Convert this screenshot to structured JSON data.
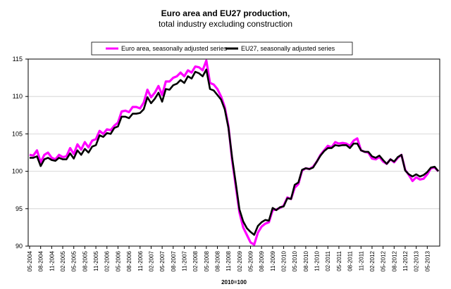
{
  "chart_data": {
    "type": "line",
    "title": "Euro area and EU27 production,",
    "subtitle": "total industry excluding construction",
    "xlabel": "2010=100",
    "ylabel": "",
    "ylim": [
      90,
      115
    ],
    "yticks": [
      90,
      95,
      100,
      105,
      110,
      115
    ],
    "grid": "horizontal",
    "legend_position": "top",
    "x_start": "05-2004",
    "x_end": "05-2013",
    "x_tick_labels": [
      "05-2004",
      "08-2004",
      "11-2004",
      "02-2005",
      "05-2005",
      "08-2005",
      "11-2005",
      "02-2006",
      "05-2006",
      "08-2006",
      "11-2006",
      "02-2007",
      "05-2007",
      "08-2007",
      "11-2007",
      "02-2008",
      "05-2008",
      "08-2008",
      "11-2008",
      "02-2009",
      "05-2009",
      "08-2009",
      "11-2009",
      "02-2010",
      "05-2010",
      "08-2010",
      "11-2010",
      "02-2011",
      "05-2011",
      "08-2011",
      "11-2011",
      "02-2012",
      "05-2012",
      "08-2012",
      "11-2012",
      "02-2013",
      "05-2013"
    ],
    "series": [
      {
        "name": "Euro area, seasonally adjusted series",
        "color": "#ff00ff",
        "values": [
          102.2,
          102.1,
          102.8,
          101.2,
          102.2,
          102.5,
          101.8,
          101.6,
          102.2,
          101.9,
          102.0,
          103.1,
          102.3,
          103.6,
          102.9,
          103.9,
          103.2,
          104.1,
          104.3,
          105.4,
          105.0,
          105.6,
          105.5,
          106.1,
          106.5,
          108.0,
          108.1,
          107.9,
          108.6,
          108.6,
          108.4,
          109.2,
          110.9,
          109.9,
          110.5,
          111.4,
          110.2,
          112.0,
          112.0,
          112.5,
          112.7,
          113.2,
          112.7,
          113.5,
          113.2,
          114.0,
          113.9,
          113.5,
          114.8,
          111.8,
          111.6,
          111.0,
          110.0,
          108.6,
          106.0,
          101.5,
          98.0,
          94.5,
          92.5,
          91.5,
          90.5,
          90.2,
          91.8,
          92.6,
          93.0,
          93.2,
          94.8,
          94.9,
          95.1,
          95.4,
          96.5,
          96.3,
          97.8,
          98.3,
          100.1,
          100.4,
          100.3,
          100.6,
          101.3,
          102.2,
          102.8,
          103.4,
          103.2,
          103.9,
          103.7,
          103.8,
          103.7,
          103.4,
          104.1,
          104.4,
          102.8,
          102.6,
          102.5,
          101.7,
          101.6,
          101.9,
          101.3,
          101.0,
          101.6,
          101.2,
          101.8,
          102.2,
          100.2,
          99.5,
          98.7,
          99.2,
          98.9,
          99.0,
          99.6,
          100.4,
          100.5,
          100.0
        ]
      },
      {
        "name": "EU27, seasonally adjusted series",
        "color": "#000000",
        "values": [
          101.8,
          101.8,
          102.0,
          100.7,
          101.6,
          101.8,
          101.5,
          101.4,
          101.8,
          101.6,
          101.6,
          102.4,
          101.7,
          102.8,
          102.2,
          103.0,
          102.5,
          103.3,
          103.5,
          104.8,
          104.6,
          105.1,
          105.0,
          105.8,
          106.0,
          107.3,
          107.3,
          107.1,
          107.7,
          107.7,
          107.8,
          108.3,
          109.9,
          109.1,
          109.7,
          110.5,
          109.3,
          111.0,
          110.9,
          111.5,
          111.7,
          112.2,
          111.8,
          112.7,
          112.4,
          113.3,
          113.1,
          112.7,
          113.6,
          111.0,
          110.8,
          110.2,
          109.6,
          108.3,
          105.8,
          101.8,
          98.4,
          94.9,
          93.3,
          92.4,
          91.9,
          91.5,
          92.7,
          93.2,
          93.5,
          93.4,
          95.1,
          94.8,
          95.2,
          95.3,
          96.4,
          96.3,
          98.2,
          98.5,
          100.2,
          100.4,
          100.3,
          100.5,
          101.3,
          102.1,
          102.7,
          103.1,
          103.1,
          103.5,
          103.4,
          103.5,
          103.5,
          103.1,
          103.7,
          103.7,
          102.8,
          102.6,
          102.6,
          102.0,
          101.8,
          102.1,
          101.5,
          101.0,
          101.6,
          101.3,
          101.9,
          102.2,
          100.1,
          99.6,
          99.3,
          99.6,
          99.3,
          99.5,
          99.9,
          100.5,
          100.6,
          100.0
        ]
      }
    ]
  }
}
